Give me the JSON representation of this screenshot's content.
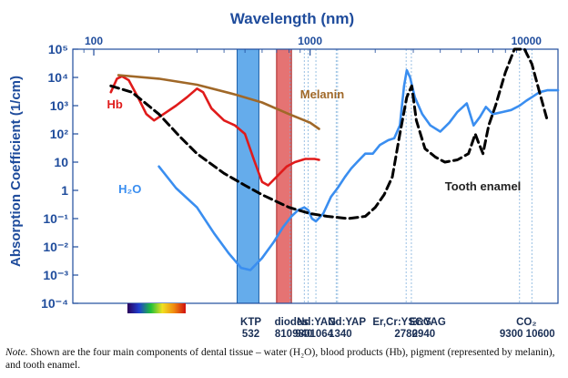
{
  "chart_data": {
    "type": "line",
    "title": "Wavelength (nm)",
    "xlabel": "Wavelength (nm)",
    "ylabel": "Absorption Coefficient (1/cm)",
    "x_scale": "log",
    "y_scale": "log",
    "xlim": [
      80,
      14000
    ],
    "ylim": [
      0.0001,
      100000
    ],
    "grid": false,
    "legend": "inline labels",
    "x_tick_labels": [
      {
        "v": 100,
        "t": "100"
      },
      {
        "v": 1000,
        "t": "1000"
      },
      {
        "v": 10000,
        "t": "10000"
      }
    ],
    "y_tick_labels": [
      {
        "v": 100000,
        "t": "10⁵"
      },
      {
        "v": 10000,
        "t": "10⁴"
      },
      {
        "v": 1000,
        "t": "10³"
      },
      {
        "v": 100,
        "t": "10²"
      },
      {
        "v": 10,
        "t": "10"
      },
      {
        "v": 1,
        "t": "1"
      },
      {
        "v": 0.1,
        "t": "10⁻¹"
      },
      {
        "v": 0.01,
        "t": "10⁻²"
      },
      {
        "v": 0.001,
        "t": "10⁻³"
      },
      {
        "v": 0.0001,
        "t": "10⁻⁴"
      }
    ],
    "series": [
      {
        "name": "H₂O",
        "color": "#3a8ef0",
        "style": "solid",
        "points": [
          [
            200,
            7
          ],
          [
            240,
            1.2
          ],
          [
            300,
            0.25
          ],
          [
            360,
            0.03
          ],
          [
            420,
            0.006
          ],
          [
            480,
            0.0018
          ],
          [
            530,
            0.0015
          ],
          [
            600,
            0.004
          ],
          [
            680,
            0.015
          ],
          [
            750,
            0.05
          ],
          [
            820,
            0.12
          ],
          [
            880,
            0.2
          ],
          [
            940,
            0.25
          ],
          [
            980,
            0.2
          ],
          [
            1020,
            0.1
          ],
          [
            1064,
            0.08
          ],
          [
            1150,
            0.15
          ],
          [
            1250,
            0.6
          ],
          [
            1340,
            1.2
          ],
          [
            1450,
            3
          ],
          [
            1550,
            6
          ],
          [
            1650,
            10
          ],
          [
            1800,
            20
          ],
          [
            1950,
            20
          ],
          [
            2100,
            40
          ],
          [
            2300,
            60
          ],
          [
            2450,
            70
          ],
          [
            2600,
            200
          ],
          [
            2720,
            5000
          ],
          [
            2800,
            18000
          ],
          [
            2900,
            10000
          ],
          [
            3050,
            2000
          ],
          [
            3300,
            500
          ],
          [
            3600,
            200
          ],
          [
            4000,
            120
          ],
          [
            4400,
            250
          ],
          [
            4800,
            600
          ],
          [
            5300,
            1200
          ],
          [
            5700,
            200
          ],
          [
            6100,
            400
          ],
          [
            6500,
            900
          ],
          [
            7000,
            500
          ],
          [
            7800,
            600
          ],
          [
            8500,
            700
          ],
          [
            9300,
            1000
          ],
          [
            10000,
            1500
          ],
          [
            10600,
            2000
          ],
          [
            11500,
            3000
          ],
          [
            12500,
            3500
          ],
          [
            14000,
            3500
          ]
        ]
      },
      {
        "name": "Hb",
        "color": "#e01b1b",
        "style": "solid",
        "points": [
          [
            120,
            3000
          ],
          [
            128,
            9000
          ],
          [
            135,
            11000
          ],
          [
            145,
            8000
          ],
          [
            160,
            2000
          ],
          [
            175,
            500
          ],
          [
            190,
            300
          ],
          [
            210,
            500
          ],
          [
            240,
            1000
          ],
          [
            270,
            2000
          ],
          [
            300,
            4000
          ],
          [
            320,
            3000
          ],
          [
            350,
            800
          ],
          [
            400,
            300
          ],
          [
            450,
            200
          ],
          [
            500,
            100
          ],
          [
            550,
            12
          ],
          [
            600,
            2
          ],
          [
            640,
            1.5
          ],
          [
            700,
            3
          ],
          [
            780,
            7
          ],
          [
            850,
            10
          ],
          [
            950,
            13
          ],
          [
            1050,
            13
          ],
          [
            1100,
            12
          ]
        ]
      },
      {
        "name": "Melanin",
        "color": "#a06828",
        "style": "solid",
        "points": [
          [
            130,
            12000
          ],
          [
            200,
            9000
          ],
          [
            300,
            5500
          ],
          [
            450,
            2500
          ],
          [
            600,
            1300
          ],
          [
            800,
            500
          ],
          [
            1000,
            250
          ],
          [
            1100,
            150
          ]
        ]
      },
      {
        "name": "Tooth enamel",
        "color": "#000000",
        "style": "dashed",
        "points": [
          [
            120,
            5000
          ],
          [
            150,
            3000
          ],
          [
            200,
            500
          ],
          [
            250,
            80
          ],
          [
            300,
            20
          ],
          [
            400,
            4
          ],
          [
            500,
            1.5
          ],
          [
            600,
            0.7
          ],
          [
            700,
            0.4
          ],
          [
            800,
            0.25
          ],
          [
            1000,
            0.15
          ],
          [
            1200,
            0.12
          ],
          [
            1500,
            0.1
          ],
          [
            1800,
            0.12
          ],
          [
            2000,
            0.25
          ],
          [
            2200,
            0.7
          ],
          [
            2400,
            3
          ],
          [
            2600,
            100
          ],
          [
            2800,
            2000
          ],
          [
            2950,
            5000
          ],
          [
            3100,
            300
          ],
          [
            3400,
            30
          ],
          [
            3800,
            15
          ],
          [
            4200,
            10
          ],
          [
            4800,
            12
          ],
          [
            5400,
            20
          ],
          [
            5800,
            100
          ],
          [
            6000,
            50
          ],
          [
            6300,
            20
          ],
          [
            6700,
            200
          ],
          [
            7200,
            1000
          ],
          [
            8000,
            15000
          ],
          [
            8800,
            100000
          ],
          [
            9300,
            120000
          ],
          [
            9800,
            100000
          ],
          [
            10600,
            30000
          ],
          [
            11500,
            3000
          ],
          [
            12500,
            300
          ]
        ]
      }
    ],
    "bands": [
      {
        "from": 460,
        "to": 580,
        "color": "#4a9de8",
        "outline": "#1c5fa8"
      },
      {
        "from": 700,
        "to": 820,
        "color": "#e05a5a",
        "outline": "#a71f1f"
      }
    ],
    "laser_lines": [
      810,
      940,
      980,
      1064,
      1320,
      1340,
      2780,
      2940,
      9300,
      10600
    ],
    "annotations": [
      {
        "text": "Melanin",
        "color": "#a06828",
        "x": 900,
        "y": 1800,
        "bold": true
      },
      {
        "text": "Hb",
        "color": "#e01b1b",
        "x": 115,
        "y": 800,
        "bold": true
      },
      {
        "text": "H₂O",
        "color": "#3a8ef0",
        "x": 130,
        "y": 0.8,
        "bold": true
      },
      {
        "text": "Tooth enamel",
        "color": "#222222",
        "x": 4200,
        "y": 1.0,
        "bold": true
      }
    ],
    "laser_labels": [
      {
        "text": "KTP",
        "x": 532,
        "row": 0
      },
      {
        "text": "532",
        "x": 532,
        "row": 1
      },
      {
        "text": "diodes",
        "x": 820,
        "row": 0
      },
      {
        "text": "810 940",
        "x": 840,
        "row": 1
      },
      {
        "text": "Nd:YAG",
        "x": 1070,
        "row": 0
      },
      {
        "text": "9801064",
        "x": 1030,
        "row": 1
      },
      {
        "text": "Nd:YAP",
        "x": 1480,
        "row": 0
      },
      {
        "text": "1340",
        "x": 1380,
        "row": 1
      },
      {
        "text": "Er,Cr:YSGG",
        "x": 2660,
        "row": 0
      },
      {
        "text": "2780",
        "x": 2780,
        "row": 1
      },
      {
        "text": "Er:YAG",
        "x": 3500,
        "row": 0
      },
      {
        "text": "2940",
        "x": 3350,
        "row": 1
      },
      {
        "text": "CO₂",
        "x": 10000,
        "row": 0
      },
      {
        "text": "9300 10600",
        "x": 10100,
        "row": 1
      }
    ]
  },
  "note": {
    "prefix": "Note.",
    "text": "Shown are the four main components of dental tissue – water (H₂O), blood products (Hb), pigment (represented by melanin), and tooth enamel."
  }
}
